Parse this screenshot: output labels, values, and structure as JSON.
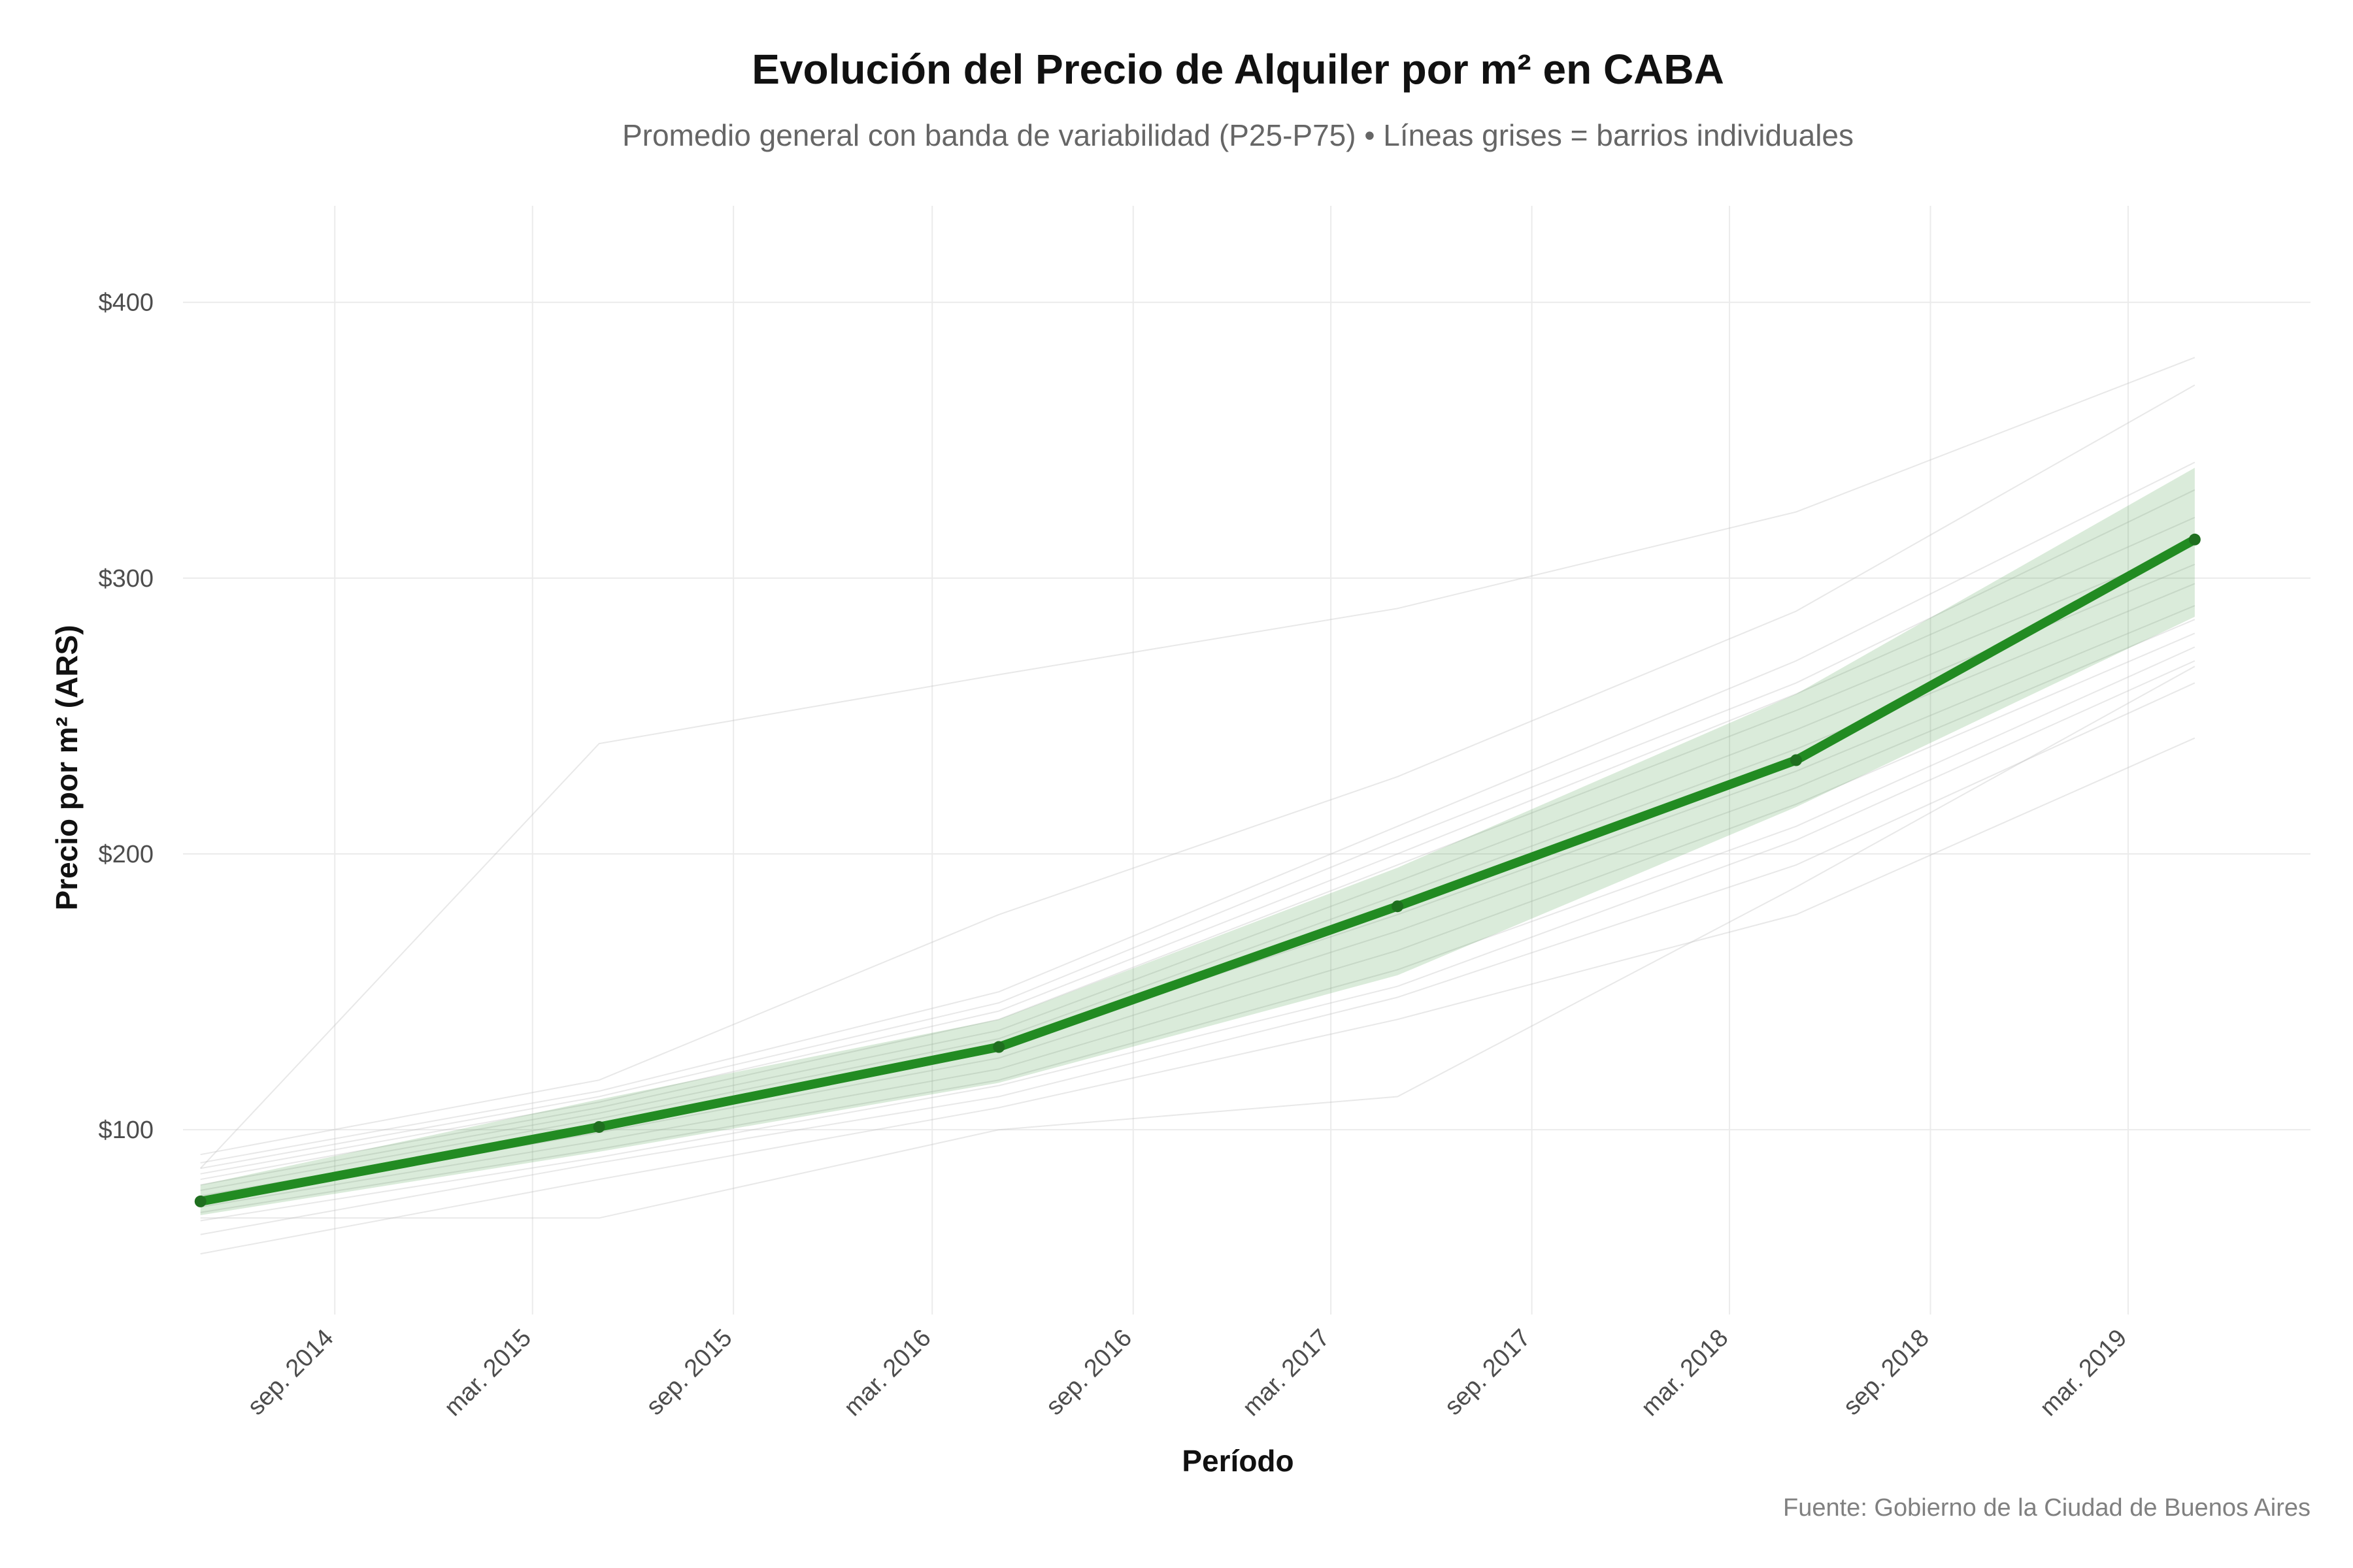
{
  "chart_data": {
    "type": "line",
    "title": "Evolución del Precio de Alquiler por m² en CABA",
    "subtitle": "Promedio general con banda de variabilidad (P25-P75) • Líneas grises = barrios individuales",
    "xlabel": "Período",
    "ylabel": "Precio por m² (ARS)",
    "caption": "Fuente: Gobierno de la Ciudad de Buenos Aires",
    "x_type": "date",
    "xlim": [
      "2014-04-15",
      "2019-08-15"
    ],
    "ylim": [
      33,
      435
    ],
    "x_ticks": [
      {
        "date": "2014-09-01",
        "label": "sep. 2014"
      },
      {
        "date": "2015-03-01",
        "label": "mar. 2015"
      },
      {
        "date": "2015-09-01",
        "label": "sep. 2015"
      },
      {
        "date": "2016-03-01",
        "label": "mar. 2016"
      },
      {
        "date": "2016-09-01",
        "label": "sep. 2016"
      },
      {
        "date": "2017-03-01",
        "label": "mar. 2017"
      },
      {
        "date": "2017-09-01",
        "label": "sep. 2017"
      },
      {
        "date": "2018-03-01",
        "label": "mar. 2018"
      },
      {
        "date": "2018-09-01",
        "label": "sep. 2018"
      },
      {
        "date": "2019-03-01",
        "label": "mar. 2019"
      }
    ],
    "y_ticks": [
      {
        "value": 100,
        "label": "$100"
      },
      {
        "value": 200,
        "label": "$200"
      },
      {
        "value": 300,
        "label": "$300"
      },
      {
        "value": 400,
        "label": "$400"
      }
    ],
    "grid": true,
    "legend": "none",
    "colors": {
      "mean_line": "#228B22",
      "band": "#228B22",
      "barrios": "#bdbdbd",
      "grid": "#ebebeb"
    },
    "series": [
      {
        "name": "Promedio general",
        "x": [
          "2014-05-01",
          "2015-05-01",
          "2016-05-01",
          "2017-05-01",
          "2018-05-01",
          "2019-05-01"
        ],
        "y": [
          74,
          101,
          130,
          181,
          234,
          314
        ]
      }
    ],
    "band": {
      "x": [
        "2014-05-01",
        "2015-05-01",
        "2016-05-01",
        "2017-05-01",
        "2018-05-01",
        "2019-05-01"
      ],
      "lower": [
        69,
        92,
        117,
        156,
        217,
        286
      ],
      "upper": [
        80,
        111,
        140,
        195,
        258,
        340
      ]
    },
    "barrios": {
      "x": [
        "2014-05-01",
        "2015-05-01",
        "2016-05-01",
        "2017-05-01",
        "2018-05-01",
        "2019-05-01"
      ],
      "lines": [
        [
          55,
          82,
          108,
          140,
          178,
          242
        ],
        [
          62,
          88,
          112,
          148,
          196,
          262
        ],
        [
          67,
          90,
          116,
          152,
          205,
          270
        ],
        [
          68,
          68,
          100,
          112,
          188,
          268
        ],
        [
          70,
          93,
          118,
          158,
          210,
          275
        ],
        [
          72,
          96,
          122,
          165,
          218,
          280
        ],
        [
          74,
          99,
          126,
          172,
          224,
          285
        ],
        [
          76,
          101,
          130,
          178,
          230,
          290
        ],
        [
          78,
          104,
          133,
          185,
          238,
          298
        ],
        [
          80,
          106,
          136,
          190,
          245,
          305
        ],
        [
          82,
          108,
          140,
          196,
          252,
          312
        ],
        [
          84,
          110,
          143,
          200,
          258,
          322
        ],
        [
          86,
          112,
          146,
          205,
          262,
          332
        ],
        [
          88,
          114,
          150,
          210,
          270,
          342
        ],
        [
          91,
          118,
          178,
          228,
          288,
          370
        ],
        [
          86,
          240,
          265,
          289,
          324,
          380
        ]
      ]
    }
  }
}
